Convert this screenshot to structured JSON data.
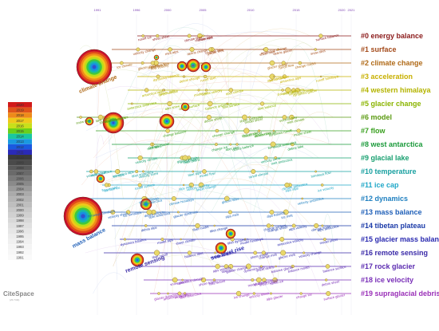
{
  "chart_data": {
    "type": "timeline",
    "time_axis": {
      "ticks": [
        "1991",
        "1996",
        "2000",
        "2005",
        "2010",
        "2015",
        "2020",
        "2021"
      ],
      "range": [
        1991,
        2021
      ]
    },
    "clusters": [
      {
        "id": "#0",
        "label": "energy balance",
        "color": "#8b1a1a"
      },
      {
        "id": "#1",
        "label": "surface",
        "color": "#a34a1a"
      },
      {
        "id": "#2",
        "label": "climate change",
        "color": "#b06a18"
      },
      {
        "id": "#3",
        "label": "acceleration",
        "color": "#c8b000"
      },
      {
        "id": "#4",
        "label": "western himalaya",
        "color": "#b4b400"
      },
      {
        "id": "#5",
        "label": "glacier change",
        "color": "#8ab400"
      },
      {
        "id": "#6",
        "label": "model",
        "color": "#5a9a10"
      },
      {
        "id": "#7",
        "label": "flow",
        "color": "#3aa020"
      },
      {
        "id": "#8",
        "label": "west antarctica",
        "color": "#1a9a3a"
      },
      {
        "id": "#9",
        "label": "glacial lake",
        "color": "#18a070"
      },
      {
        "id": "#10",
        "label": "temperature",
        "color": "#18a0a0"
      },
      {
        "id": "#11",
        "label": "ice cap",
        "color": "#20a8c8"
      },
      {
        "id": "#12",
        "label": "dynamics",
        "color": "#2080c0"
      },
      {
        "id": "#13",
        "label": "mass balance",
        "color": "#2060b8"
      },
      {
        "id": "#14",
        "label": "tibetan plateau",
        "color": "#1a3aa8"
      },
      {
        "id": "#15",
        "label": "glacier mass balance",
        "color": "#2a2ab0"
      },
      {
        "id": "#16",
        "label": "remote sensing",
        "color": "#3a2aa8"
      },
      {
        "id": "#17",
        "label": "rock glacier",
        "color": "#5a2ab0"
      },
      {
        "id": "#18",
        "label": "ice velocity",
        "color": "#7a30b8"
      },
      {
        "id": "#19",
        "label": "supraglacial debris",
        "color": "#9a30b8"
      }
    ],
    "big_terms": [
      {
        "text": "climate change"
      },
      {
        "text": "mass balance"
      },
      {
        "text": "remote sensing"
      },
      {
        "text": "sea level rise"
      }
    ],
    "legend_years": [
      "2020",
      "2019",
      "2018",
      "2017",
      "2016",
      "2015",
      "2014",
      "2013",
      "2012",
      "2011",
      "2010",
      "2009",
      "2008",
      "2007",
      "2006",
      "2005",
      "2004",
      "2003",
      "2002",
      "2001",
      "2000",
      "1999",
      "1998",
      "1997",
      "1996",
      "1995",
      "1994",
      "1993",
      "1992",
      "1991"
    ],
    "legend_colors": [
      "#d11a1a",
      "#e0541a",
      "#ee8a1a",
      "#f0c81a",
      "#c8e01a",
      "#6ad01a",
      "#1ac8a0",
      "#1a9ae0",
      "#1a5ae0",
      "#2a2ab8",
      "#3a3a3a",
      "#4a4a4a",
      "#5a5a5a",
      "#6a6a6a",
      "#7a7a7a",
      "#8a8a8a",
      "#9a9a9a",
      "#aaaaaa",
      "#b4b4b4",
      "#bebebe",
      "#c8c8c8",
      "#d0d0d0",
      "#d8d8d8",
      "#e0e0e0",
      "#e6e6e6",
      "#ececec",
      "#f0f0f0",
      "#f4f4f4",
      "#f7f7f7",
      "#fafafa"
    ]
  },
  "logo": {
    "main": "CiteSpace",
    "sub": "(v5.7.R2)"
  }
}
